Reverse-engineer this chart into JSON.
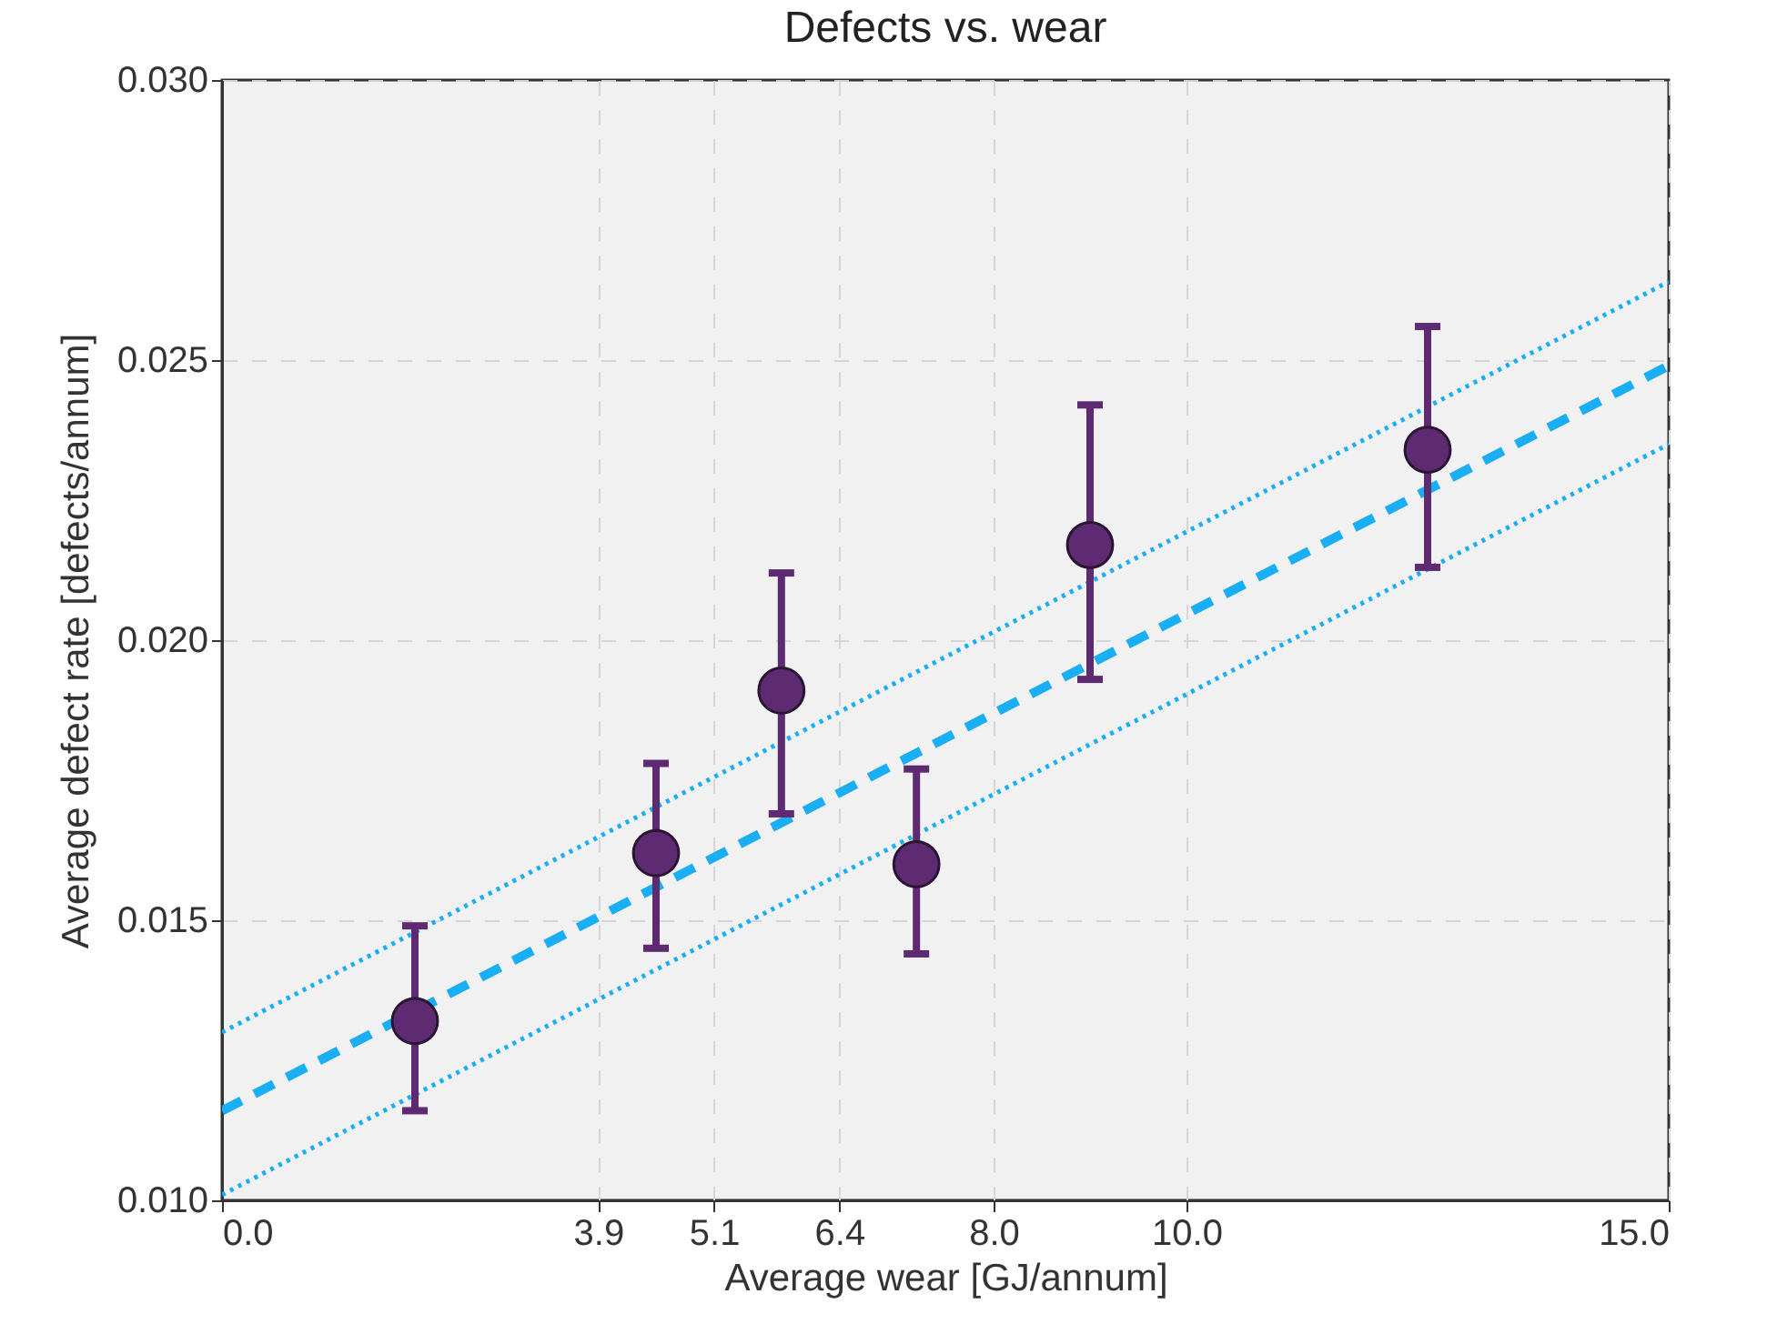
{
  "chart_data": {
    "type": "scatter",
    "title": "Defects vs. wear",
    "xlabel": "Average wear [GJ/annum]",
    "ylabel": "Average defect rate [defects/annum]",
    "xlim": [
      0,
      15
    ],
    "xticks": [
      {
        "value": 0,
        "label": "0.0"
      },
      {
        "value": 3.9,
        "label": "3.9"
      },
      {
        "value": 5.1,
        "label": "5.1"
      },
      {
        "value": 6.4,
        "label": "6.4"
      },
      {
        "value": 8,
        "label": "8.0"
      },
      {
        "value": 10,
        "label": "10.0"
      },
      {
        "value": 15,
        "label": "15.0"
      }
    ],
    "ylim": [
      0.01,
      0.03
    ],
    "yticks": [
      {
        "value": 0.01,
        "label": "0.010"
      },
      {
        "value": 0.015,
        "label": "0.015"
      },
      {
        "value": 0.02,
        "label": "0.020"
      },
      {
        "value": 0.025,
        "label": "0.025"
      },
      {
        "value": 0.03,
        "label": "0.030"
      }
    ],
    "grid": true,
    "marker": "circle",
    "series": [
      {
        "type": "line",
        "color": "#1aaef5",
        "line_style": "dashed",
        "marker": "none",
        "x": [
          0,
          15
        ],
        "values": [
          0.0116,
          0.0249
        ]
      },
      {
        "type": "line",
        "color": "#1aaef5",
        "line_style": "dotted",
        "marker": "none",
        "x": [
          0,
          15
        ],
        "values": [
          0.013,
          0.0264
        ]
      },
      {
        "type": "line",
        "color": "#1aaef5",
        "line_style": "dotted",
        "marker": "none",
        "x": [
          0,
          15
        ],
        "values": [
          0.0101,
          0.0235
        ]
      },
      {
        "color": "#5e2b73",
        "x": [
          2.0,
          4.5,
          5.8,
          7.2,
          9.0,
          12.5
        ],
        "values": [
          0.0132,
          0.0162,
          0.0191,
          0.016,
          0.0217,
          0.0234
        ],
        "errors": [
          [
            0.0116,
            0.0149
          ],
          [
            0.0145,
            0.0178
          ],
          [
            0.0169,
            0.0212
          ],
          [
            0.0144,
            0.0177
          ],
          [
            0.0193,
            0.0242
          ],
          [
            0.0213,
            0.0256
          ]
        ]
      }
    ]
  }
}
